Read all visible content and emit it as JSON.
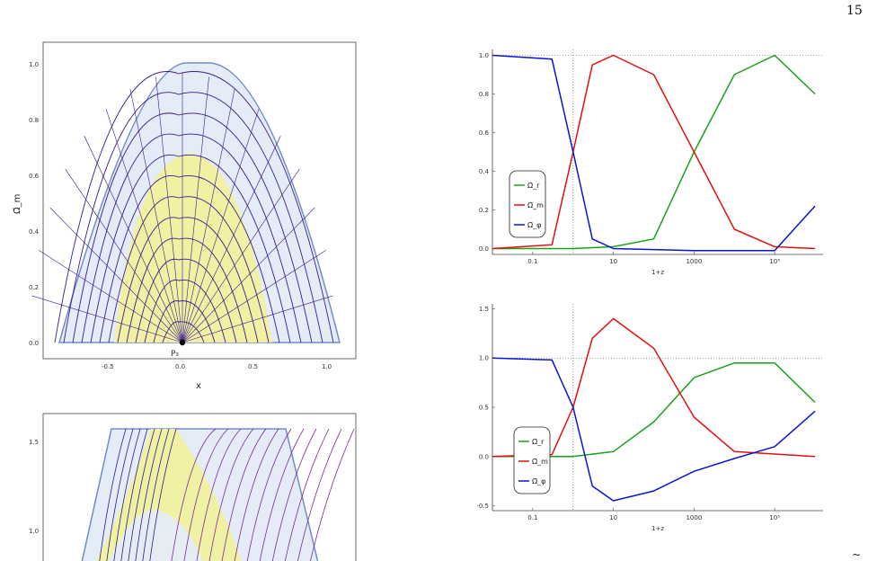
{
  "page": {
    "number": "15",
    "trailing_mark": "~"
  },
  "chart_data": [
    {
      "type": "streamplot",
      "xlabel": "x",
      "ylabel": "Ω̃_m",
      "xlim": [
        -0.9,
        1.2
      ],
      "ylim": [
        -0.05,
        1.05
      ],
      "xticks": [
        "-0.5",
        "0.0",
        "0.5",
        "1.0"
      ],
      "yticks": [
        "0.0",
        "0.2",
        "0.4",
        "0.6",
        "0.8",
        "1.0"
      ],
      "point_label": "P₃",
      "point": [
        0,
        0
      ]
    },
    {
      "type": "streamplot",
      "yticks": [
        "1.0",
        "1.5"
      ],
      "partial": true
    },
    {
      "type": "line",
      "xlabel": "1+z",
      "xscale": "log",
      "xticks": [
        "0.1",
        "10",
        "1000",
        "10⁵"
      ],
      "yticks": [
        "0.0",
        "0.2",
        "0.4",
        "0.6",
        "0.8",
        "1.0"
      ],
      "ylim": [
        -0.03,
        1.03
      ],
      "series": [
        {
          "name": "Ω̃_r",
          "color": "#1aa11a",
          "points": [
            [
              0.01,
              0
            ],
            [
              0.1,
              0
            ],
            [
              1,
              0
            ],
            [
              10,
              0.01
            ],
            [
              100,
              0.05
            ],
            [
              1000,
              0.5
            ],
            [
              10000,
              0.9
            ],
            [
              100000,
              1.0
            ],
            [
              1000000,
              0.8
            ]
          ]
        },
        {
          "name": "Ω̃_m",
          "color": "#e01010",
          "points": [
            [
              0.01,
              0
            ],
            [
              0.3,
              0.02
            ],
            [
              1,
              0.5
            ],
            [
              3,
              0.95
            ],
            [
              10,
              1.0
            ],
            [
              100,
              0.9
            ],
            [
              1000,
              0.5
            ],
            [
              10000,
              0.1
            ],
            [
              100000,
              0.01
            ],
            [
              1000000,
              0
            ]
          ]
        },
        {
          "name": "Ω̃_φ",
          "color": "#0a14d0",
          "points": [
            [
              0.01,
              1.0
            ],
            [
              0.3,
              0.98
            ],
            [
              1,
              0.5
            ],
            [
              3,
              0.05
            ],
            [
              10,
              0
            ],
            [
              1000,
              -0.01
            ],
            [
              100000,
              -0.01
            ],
            [
              1000000,
              0.22
            ]
          ]
        }
      ]
    },
    {
      "type": "line",
      "xlabel": "1+z",
      "xscale": "log",
      "xticks": [
        "0.1",
        "10",
        "1000",
        "10⁵"
      ],
      "yticks": [
        "-0.5",
        "0.0",
        "0.5",
        "1.0",
        "1.5"
      ],
      "ylim": [
        -0.55,
        1.55
      ],
      "series": [
        {
          "name": "Ω̃_r",
          "color": "#1aa11a",
          "points": [
            [
              0.01,
              0
            ],
            [
              1,
              0
            ],
            [
              10,
              0.05
            ],
            [
              100,
              0.35
            ],
            [
              1000,
              0.8
            ],
            [
              10000,
              0.95
            ],
            [
              100000,
              0.95
            ],
            [
              1000000,
              0.55
            ]
          ]
        },
        {
          "name": "Ω̃_m",
          "color": "#e01010",
          "points": [
            [
              0.01,
              0
            ],
            [
              0.3,
              0.02
            ],
            [
              1,
              0.5
            ],
            [
              3,
              1.2
            ],
            [
              10,
              1.4
            ],
            [
              100,
              1.1
            ],
            [
              1000,
              0.4
            ],
            [
              10000,
              0.05
            ],
            [
              1000000,
              0
            ]
          ]
        },
        {
          "name": "Ω̃_φ",
          "color": "#0a14d0",
          "points": [
            [
              0.01,
              1.0
            ],
            [
              0.3,
              0.98
            ],
            [
              1,
              0.5
            ],
            [
              3,
              -0.3
            ],
            [
              10,
              -0.45
            ],
            [
              100,
              -0.35
            ],
            [
              1000,
              -0.15
            ],
            [
              10000,
              -0.02
            ],
            [
              100000,
              0.1
            ],
            [
              1000000,
              0.46
            ]
          ]
        }
      ]
    }
  ]
}
